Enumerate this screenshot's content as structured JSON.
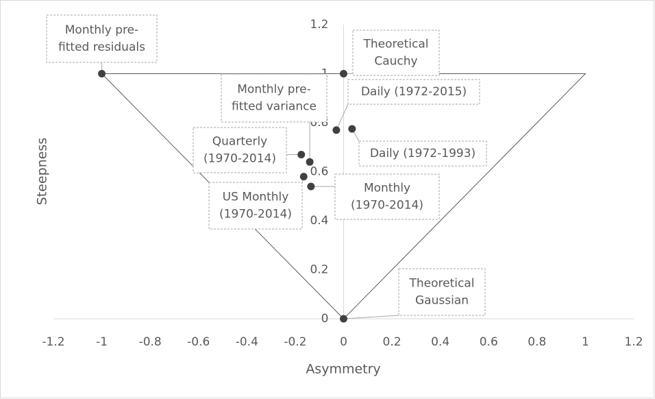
{
  "chart_data": {
    "type": "scatter",
    "xlabel": "Asymmetry",
    "ylabel": "Steepness",
    "xlim": [
      -1.2,
      1.2
    ],
    "ylim": [
      0,
      1.2
    ],
    "xticks": [
      -1.2,
      -1,
      -0.8,
      -0.6,
      -0.4,
      -0.2,
      0,
      0.2,
      0.4,
      0.6,
      0.8,
      1,
      1.2
    ],
    "yticks": [
      0,
      0.2,
      0.4,
      0.6,
      0.8,
      1,
      1.2
    ],
    "color": "#404040",
    "boundary": {
      "x": [
        -1,
        1,
        0,
        -1
      ],
      "y": [
        1,
        1,
        0,
        1
      ]
    },
    "points": [
      {
        "label": [
          "Monthly pre-",
          "fitted residuals"
        ],
        "x": -1,
        "y": 1
      },
      {
        "label": [
          "Theoretical",
          "Cauchy"
        ],
        "x": 0,
        "y": 1
      },
      {
        "label": [
          "Monthly pre-",
          "fitted variance"
        ],
        "x": -0.14,
        "y": 0.64
      },
      {
        "label": [
          "Daily (1972-2015)"
        ],
        "x": -0.03,
        "y": 0.77
      },
      {
        "label": [
          "Daily (1972-1993)"
        ],
        "x": 0.035,
        "y": 0.775
      },
      {
        "label": [
          "Quarterly",
          "(1970-2014)"
        ],
        "x": -0.175,
        "y": 0.67
      },
      {
        "label": [
          "US Monthly",
          "(1970-2014)"
        ],
        "x": -0.165,
        "y": 0.58
      },
      {
        "label": [
          "Monthly",
          "(1970-2014)"
        ],
        "x": -0.135,
        "y": 0.54
      },
      {
        "label": [
          "Theoretical",
          "Gaussian"
        ],
        "x": 0,
        "y": 0
      }
    ]
  }
}
